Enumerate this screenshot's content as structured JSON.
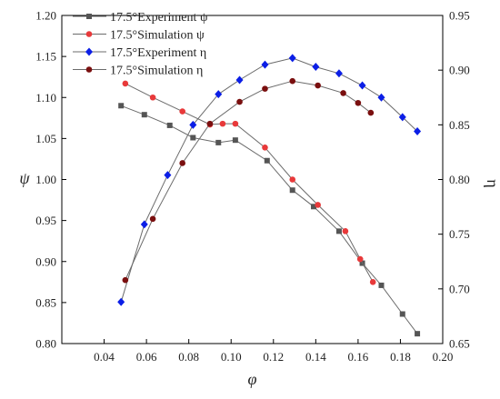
{
  "chart_data": {
    "type": "line",
    "xlabel": "φ",
    "ylabel_left": "ψ",
    "ylabel_right": "η",
    "xlim": [
      0.02,
      0.2
    ],
    "ylim_left": [
      0.8,
      1.2
    ],
    "ylim_right": [
      0.65,
      0.95
    ],
    "xticks": [
      "0.04",
      "0.06",
      "0.08",
      "0.10",
      "0.12",
      "0.14",
      "0.16",
      "0.18",
      "0.20"
    ],
    "yticks_left": [
      "0.80",
      "0.85",
      "0.90",
      "0.95",
      "1.00",
      "1.05",
      "1.10",
      "1.15",
      "1.20"
    ],
    "yticks_right": [
      "0.65",
      "0.70",
      "0.75",
      "0.80",
      "0.85",
      "0.90",
      "0.95"
    ],
    "grid": false,
    "legend_position": "top-left",
    "series": [
      {
        "name": "17.5°Experiment ψ",
        "axis": "left",
        "color": "#555555",
        "marker": "square",
        "x": [
          0.048,
          0.059,
          0.071,
          0.082,
          0.094,
          0.102,
          0.117,
          0.129,
          0.139,
          0.151,
          0.162,
          0.171,
          0.181,
          0.188
        ],
        "y": [
          1.09,
          1.079,
          1.066,
          1.051,
          1.045,
          1.048,
          1.023,
          0.987,
          0.967,
          0.937,
          0.898,
          0.871,
          0.836,
          0.812
        ]
      },
      {
        "name": "17.5°Simulation ψ",
        "axis": "left",
        "color": "#e8393a",
        "marker": "circle",
        "x": [
          0.05,
          0.063,
          0.077,
          0.09,
          0.096,
          0.102,
          0.116,
          0.129,
          0.141,
          0.154,
          0.161,
          0.167
        ],
        "y": [
          1.117,
          1.1,
          1.083,
          1.067,
          1.068,
          1.068,
          1.039,
          1.0,
          0.969,
          0.937,
          0.903,
          0.875
        ]
      },
      {
        "name": "17.5°Experiment η",
        "axis": "right",
        "color": "#0b1ee6",
        "marker": "diamond",
        "x": [
          0.048,
          0.059,
          0.07,
          0.082,
          0.094,
          0.104,
          0.116,
          0.129,
          0.14,
          0.151,
          0.162,
          0.171,
          0.181,
          0.188
        ],
        "y": [
          0.688,
          0.759,
          0.804,
          0.85,
          0.878,
          0.891,
          0.905,
          0.911,
          0.903,
          0.897,
          0.886,
          0.875,
          0.857,
          0.844
        ]
      },
      {
        "name": "17.5°Simulation η",
        "axis": "right",
        "color": "#7a0f0f",
        "marker": "circle",
        "x": [
          0.05,
          0.063,
          0.077,
          0.09,
          0.104,
          0.116,
          0.129,
          0.141,
          0.153,
          0.16,
          0.166
        ],
        "y": [
          0.708,
          0.764,
          0.815,
          0.851,
          0.871,
          0.883,
          0.89,
          0.886,
          0.879,
          0.87,
          0.861
        ]
      }
    ]
  }
}
